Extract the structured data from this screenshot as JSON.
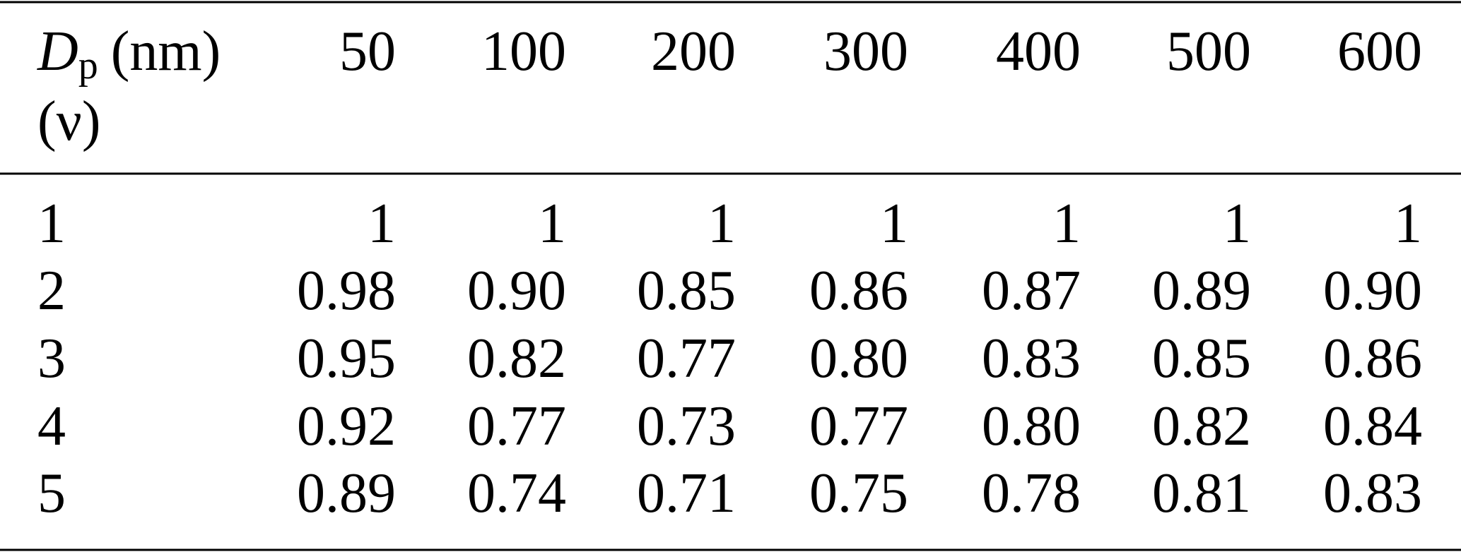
{
  "table": {
    "header": {
      "label": {
        "symbol": "D",
        "subscript": "p",
        "unit": "(nm)",
        "second_line": "(ν)"
      },
      "columns": [
        "50",
        "100",
        "200",
        "300",
        "400",
        "500",
        "600"
      ]
    },
    "rows": [
      [
        "1",
        "1",
        "1",
        "1",
        "1",
        "1",
        "1",
        "1"
      ],
      [
        "2",
        "0.98",
        "0.90",
        "0.85",
        "0.86",
        "0.87",
        "0.89",
        "0.90"
      ],
      [
        "3",
        "0.95",
        "0.82",
        "0.77",
        "0.80",
        "0.83",
        "0.85",
        "0.86"
      ],
      [
        "4",
        "0.92",
        "0.77",
        "0.73",
        "0.77",
        "0.80",
        "0.82",
        "0.84"
      ],
      [
        "5",
        "0.89",
        "0.74",
        "0.71",
        "0.75",
        "0.78",
        "0.81",
        "0.83"
      ]
    ]
  }
}
